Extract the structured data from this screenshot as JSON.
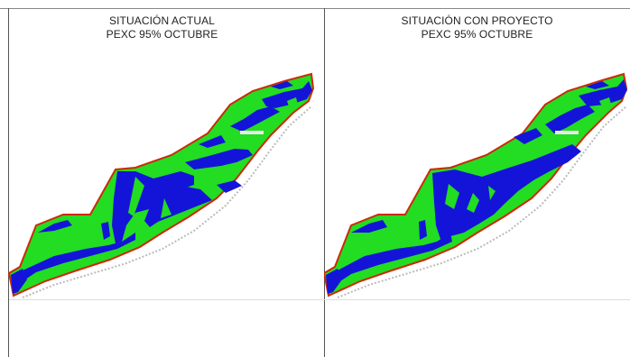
{
  "panels": [
    {
      "title_line1": "SITUACIÓN ACTUAL",
      "title_line2": "PEXC 95% OCTUBRE"
    },
    {
      "title_line1": "SITUACIÓN CON PROYECTO",
      "title_line2": "PEXC 95% OCTUBRE"
    }
  ],
  "colors": {
    "green": "#22dd22",
    "blue": "#1414d8",
    "border": "#cc2a0a",
    "frame": "#555555"
  }
}
